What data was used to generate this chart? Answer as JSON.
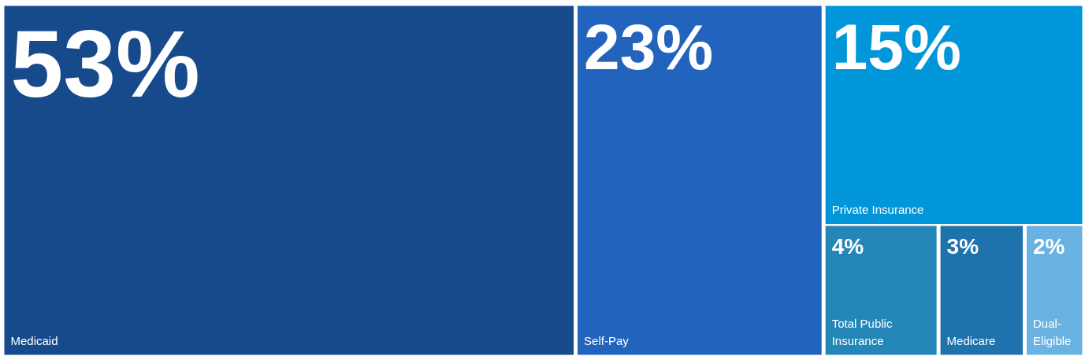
{
  "chart_data": {
    "type": "other",
    "categories": [
      "Medicaid",
      "Self-Pay",
      "Private Insurance",
      "Total Public Insurance",
      "Medicare",
      "Dual-Eligible"
    ],
    "values": [
      53,
      23,
      15,
      4,
      3,
      2
    ],
    "value_labels": [
      "53%",
      "23%",
      "15%",
      "4%",
      "3%",
      "2%"
    ],
    "colors": [
      "#174a8b",
      "#2263bd",
      "#0096d9",
      "#2487b7",
      "#1f73ad",
      "#6ab2e2"
    ]
  }
}
